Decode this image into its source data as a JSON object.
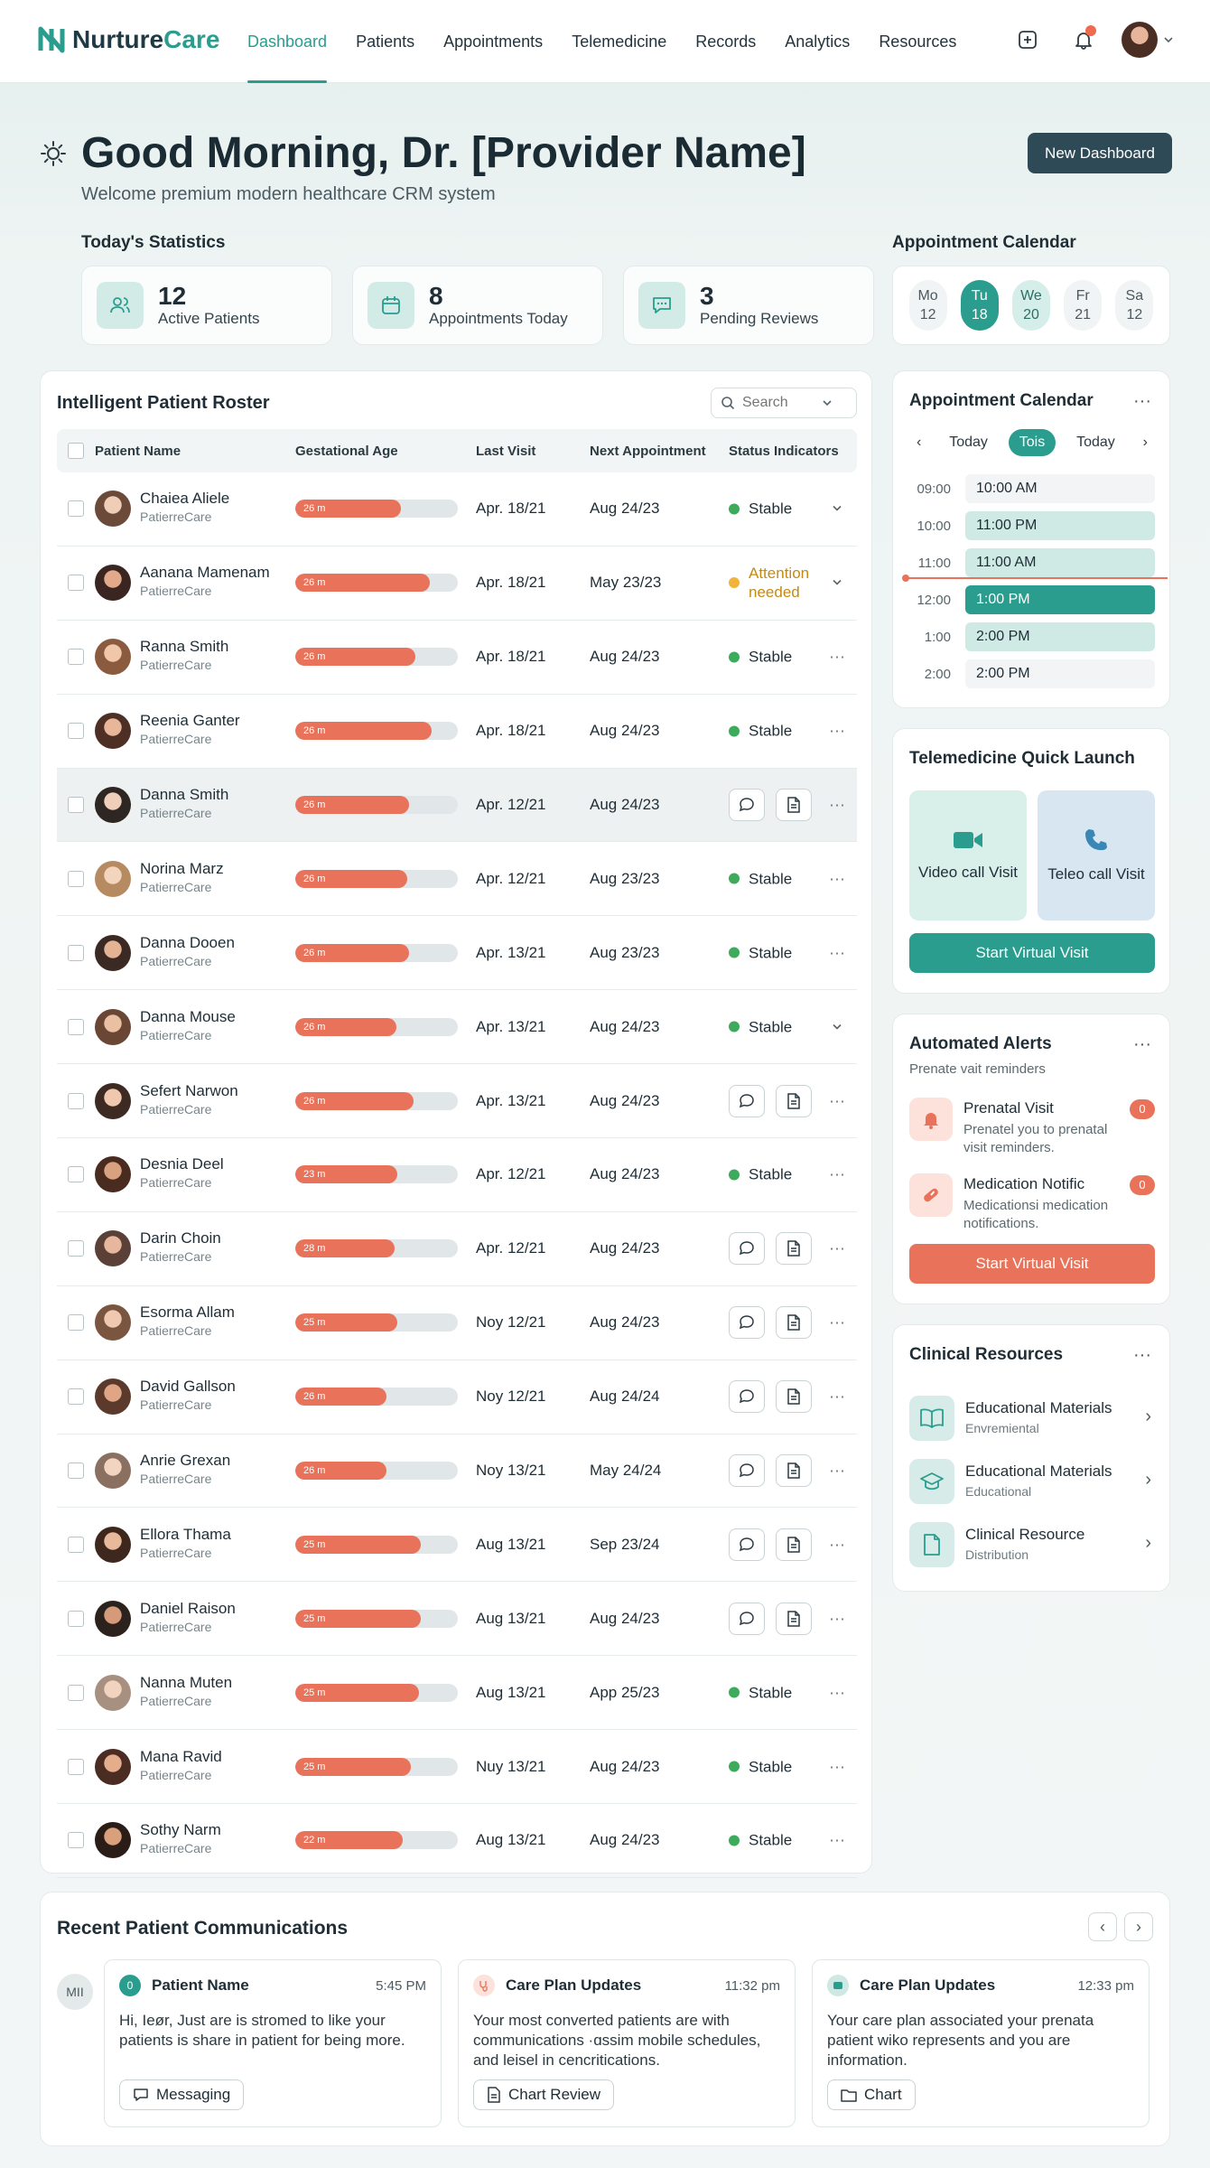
{
  "nav": {
    "brand_a": "Nurture",
    "brand_b": "Care",
    "links": [
      "Dashboard",
      "Patients",
      "Appointments",
      "Telemedicine",
      "Records",
      "Analytics",
      "Resources"
    ]
  },
  "header": {
    "greeting": "Good Morning, Dr. [Provider Name]",
    "subtitle": "Welcome premium modern healthcare CRM system",
    "new_dashboard": "New Dashboard"
  },
  "stats": {
    "label": "Today's Statistics",
    "items": [
      {
        "num": "12",
        "text": "Active Patients"
      },
      {
        "num": "8",
        "text": "Appointments Today"
      },
      {
        "num": "3",
        "text": "Pending Reviews"
      }
    ]
  },
  "calendar_strip": {
    "label": "Appointment Calendar",
    "days": [
      {
        "d": "Mo",
        "n": "12"
      },
      {
        "d": "Tu",
        "n": "18"
      },
      {
        "d": "We",
        "n": "20"
      },
      {
        "d": "Fr",
        "n": "21"
      },
      {
        "d": "Sa",
        "n": "12"
      }
    ]
  },
  "roster": {
    "title": "Intelligent Patient Roster",
    "search_placeholder": "Search",
    "columns": [
      "Patient Name",
      "Gestational Age",
      "Last Visit",
      "Next Appointment",
      "Status Indicators"
    ],
    "rows": [
      {
        "name": "Chaiea Aliele",
        "sub": "PatierreCare",
        "bar": "26 m",
        "fill": 0.65,
        "last": "Apr. 18/21",
        "next": "Aug 24/23",
        "status": "Stable",
        "action": "chevron"
      },
      {
        "name": "Aanana Mamenam",
        "sub": "PatierreCare",
        "bar": "26 m",
        "fill": 0.83,
        "last": "Apr. 18/21",
        "next": "May 23/23",
        "status": "Attention needed",
        "action": "chevron"
      },
      {
        "name": "Ranna Smith",
        "sub": "PatierreCare",
        "bar": "26 m",
        "fill": 0.74,
        "last": "Apr. 18/21",
        "next": "Aug 24/23",
        "status": "Stable",
        "action": "more"
      },
      {
        "name": "Reenia Ganter",
        "sub": "PatierreCare",
        "bar": "26 m",
        "fill": 0.84,
        "last": "Apr. 18/21",
        "next": "Aug 24/23",
        "status": "Stable",
        "action": "more"
      },
      {
        "name": "Danna Smith",
        "sub": "PatierreCare",
        "bar": "26 m",
        "fill": 0.7,
        "last": "Apr. 12/21",
        "next": "Aug 24/23",
        "status": "",
        "action": "more"
      },
      {
        "name": "Norina Marz",
        "sub": "PatierreCare",
        "bar": "26 m",
        "fill": 0.69,
        "last": "Apr. 12/21",
        "next": "Aug 23/23",
        "status": "Stable",
        "action": "more"
      },
      {
        "name": "Danna Dooen",
        "sub": "PatierreCare",
        "bar": "26 m",
        "fill": 0.7,
        "last": "Apr. 13/21",
        "next": "Aug 23/23",
        "status": "Stable",
        "action": "more"
      },
      {
        "name": "Danna Mouse",
        "sub": "PatierreCare",
        "bar": "26 m",
        "fill": 0.62,
        "last": "Apr. 13/21",
        "next": "Aug 24/23",
        "status": "Stable",
        "action": "chevron"
      },
      {
        "name": "Sefert Narwon",
        "sub": "PatierreCare",
        "bar": "26 m",
        "fill": 0.73,
        "last": "Apr. 13/21",
        "next": "Aug 24/23",
        "status": "",
        "action": "more"
      },
      {
        "name": "Desnia Deel",
        "sub": "PatierreCare",
        "bar": "23 m",
        "fill": 0.63,
        "last": "Apr. 12/21",
        "next": "Aug 24/23",
        "status": "Stable",
        "action": "more"
      },
      {
        "name": "Darin Choin",
        "sub": "PatierreCare",
        "bar": "28 m",
        "fill": 0.61,
        "last": "Apr. 12/21",
        "next": "Aug 24/23",
        "status": "",
        "action": "more"
      },
      {
        "name": "Esorma Allam",
        "sub": "PatierreCare",
        "bar": "25 m",
        "fill": 0.63,
        "last": "Noy 12/21",
        "next": "Aug 24/23",
        "status": "",
        "action": "more"
      },
      {
        "name": "David Gallson",
        "sub": "PatierreCare",
        "bar": "26 m",
        "fill": 0.56,
        "last": "Noy 12/21",
        "next": "Aug 24/24",
        "status": "",
        "action": "more"
      },
      {
        "name": "Anrie Grexan",
        "sub": "PatierreCare",
        "bar": "26 m",
        "fill": 0.56,
        "last": "Noy 13/21",
        "next": "May 24/24",
        "status": "",
        "action": "more"
      },
      {
        "name": "Ellora Thama",
        "sub": "PatierreCare",
        "bar": "25 m",
        "fill": 0.77,
        "last": "Aug 13/21",
        "next": "Sep 23/24",
        "status": "",
        "action": "more"
      },
      {
        "name": "Daniel Raison",
        "sub": "PatierreCare",
        "bar": "25 m",
        "fill": 0.77,
        "last": "Aug 13/21",
        "next": "Aug 24/23",
        "status": "",
        "action": "more"
      },
      {
        "name": "Nanna Muten",
        "sub": "PatierreCare",
        "bar": "25 m",
        "fill": 0.76,
        "last": "Aug 13/21",
        "next": "App 25/23",
        "status": "Stable",
        "action": "more"
      },
      {
        "name": "Mana Ravid",
        "sub": "PatierreCare",
        "bar": "25 m",
        "fill": 0.71,
        "last": "Nuy 13/21",
        "next": "Aug 24/23",
        "status": "Stable",
        "action": "more"
      },
      {
        "name": "Sothy Narm",
        "sub": "PatierreCare",
        "bar": "22 m",
        "fill": 0.66,
        "last": "Aug 13/21",
        "next": "Aug 24/23",
        "status": "Stable",
        "action": "more"
      }
    ]
  },
  "appt": {
    "title": "Appointment Calendar",
    "nav": [
      "Today",
      "Tois",
      "Today"
    ],
    "slots": [
      {
        "t": "09:00",
        "v": "10:00 AM",
        "style": "plain"
      },
      {
        "t": "10:00",
        "v": "11:00 PM",
        "style": "light"
      },
      {
        "t": "11:00",
        "v": "11:00 AM",
        "style": "light"
      },
      {
        "t": "12:00",
        "v": "1:00 PM",
        "style": "dark"
      },
      {
        "t": "1:00",
        "v": "2:00 PM",
        "style": "light"
      },
      {
        "t": "2:00",
        "v": "2:00 PM",
        "style": "plain"
      }
    ]
  },
  "tele": {
    "title": "Telemedicine Quick Launch",
    "video": "Video call Visit",
    "phone": "Teleo call Visit",
    "start": "Start Virtual Visit"
  },
  "alerts": {
    "title": "Automated Alerts",
    "subtitle": "Prenate vait reminders",
    "items": [
      {
        "title": "Prenatal Visit",
        "text": "Prenatel you to prenatal visit reminders.",
        "badge": "0"
      },
      {
        "title": "Medication Notific",
        "text": "Medicationsi medication notifications.",
        "badge": "0"
      }
    ],
    "button": "Start Virtual Visit"
  },
  "resources": {
    "title": "Clinical Resources",
    "items": [
      {
        "title": "Educational Materials",
        "sub": "Envremiental"
      },
      {
        "title": "Educational Materials",
        "sub": "Educational"
      },
      {
        "title": "Clinical Resource",
        "sub": "Distribution"
      }
    ]
  },
  "comms": {
    "title": "Recent Patient Communications",
    "initials": "MII",
    "cards": [
      {
        "icon_text": "0",
        "head": "Patient Name",
        "time": "5:45 PM",
        "body": "Hi, Ieør, Just are is stromed to like your patients is share in patient for being more.",
        "btn": "Messaging"
      },
      {
        "icon_text": "",
        "head": "Care Plan Updates",
        "time": "11:32 pm",
        "body": "Your most converted patients are with communications ·ɑssim mobile schedules, and leisel in cencritications.",
        "btn": "Chart Review"
      },
      {
        "icon_text": "",
        "head": "Care Plan Updates",
        "time": "12:33 pm",
        "body": "Your care plan associated your prenata patient wiko represents and you are information.",
        "btn": "Chart"
      }
    ]
  },
  "colors": {
    "accent": "#2a9d8f",
    "dark": "#2e4a56",
    "alert": "#e9735a",
    "stable": "#3daa5c",
    "warn": "#f0b43c"
  }
}
